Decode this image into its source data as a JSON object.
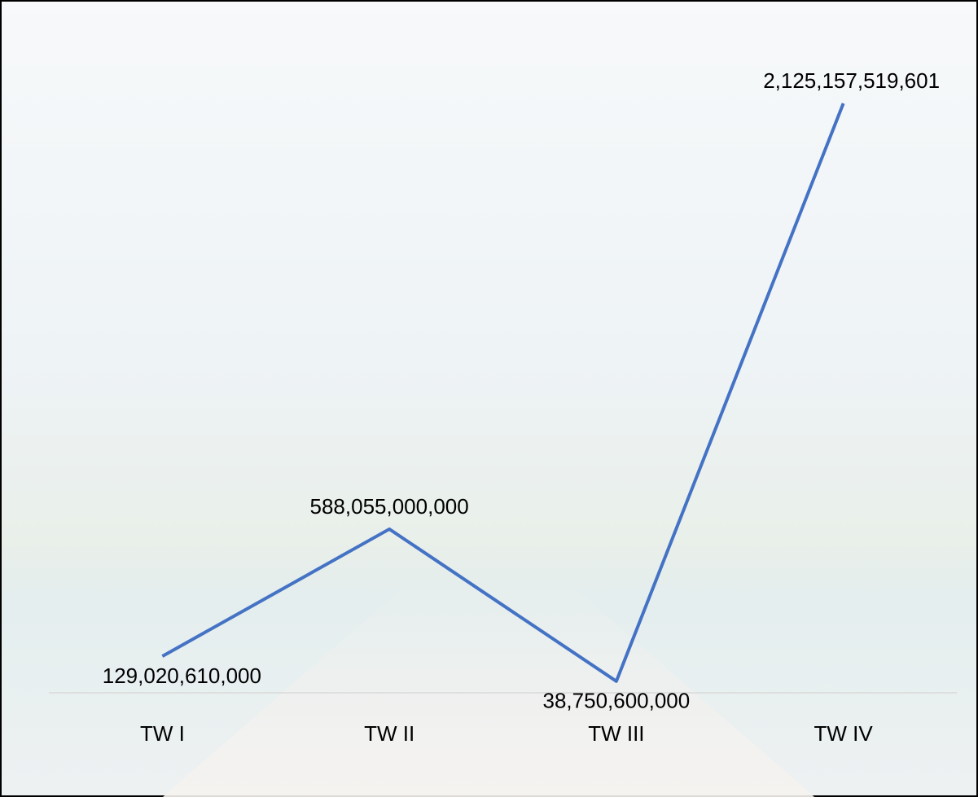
{
  "chart_data": {
    "type": "line",
    "categories": [
      "TW I",
      "TW II",
      "TW III",
      "TW IV"
    ],
    "series": [
      {
        "color": "#4472c4",
        "values": [
          129020610000,
          588055000000,
          38750600000,
          2125157519601
        ],
        "value_labels": [
          "129,020,610,000",
          "588,055,000,000",
          "38,750,600,000",
          "2,125,157,519,601"
        ]
      }
    ]
  }
}
